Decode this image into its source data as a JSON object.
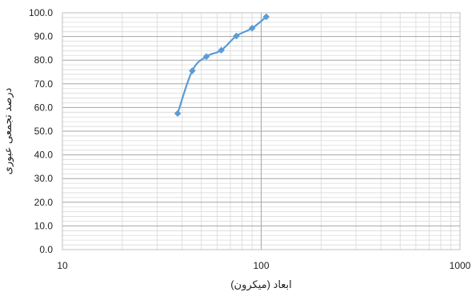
{
  "chart_data": {
    "type": "line",
    "title": "",
    "xlabel": "ابعاد (میکرون)",
    "ylabel": "درصد تجمعی عبوری",
    "x_scale": "log",
    "xlim": [
      10,
      1000
    ],
    "ylim": [
      0,
      100
    ],
    "x_ticks": [
      "10",
      "100",
      "1000"
    ],
    "y_ticks": [
      "0.0",
      "10.0",
      "20.0",
      "30.0",
      "40.0",
      "50.0",
      "60.0",
      "70.0",
      "80.0",
      "90.0",
      "100.0"
    ],
    "grid": true,
    "legend": "none",
    "series": [
      {
        "color": "#5b9bd5",
        "marker": "diamond",
        "x": [
          38,
          45,
          53,
          63,
          75,
          90,
          106
        ],
        "y": [
          57.5,
          75.5,
          81.5,
          84.2,
          90.2,
          93.5,
          98.3
        ]
      }
    ]
  }
}
